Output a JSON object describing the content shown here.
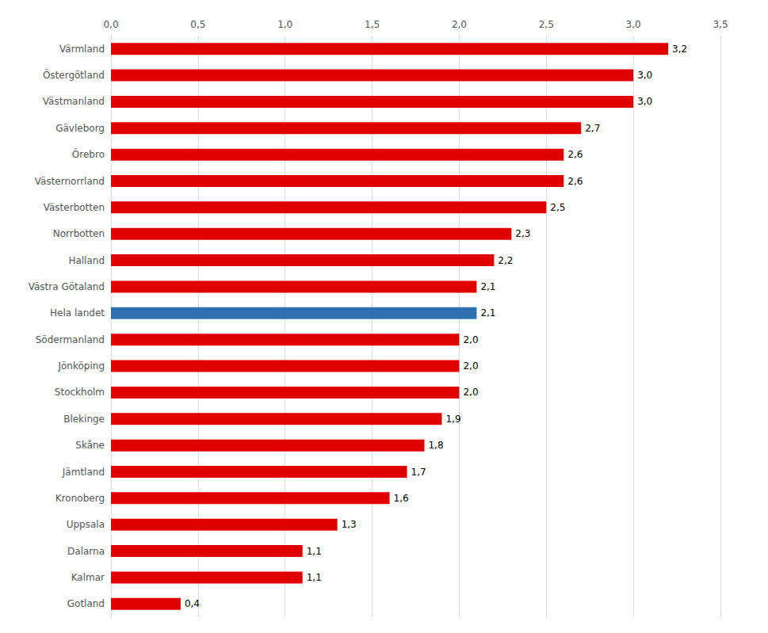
{
  "chart_data": {
    "type": "bar",
    "orientation": "horizontal",
    "categories": [
      "Gotland",
      "Kalmar",
      "Dalarna",
      "Uppsala",
      "Kronoberg",
      "Jämtland",
      "Skåne",
      "Blekinge",
      "Stockholm",
      "Jönköping",
      "Södermanland",
      "Hela landet",
      "Västra Götaland",
      "Halland",
      "Norrbotten",
      "Västerbotten",
      "Västernorrland",
      "Örebro",
      "Gävleborg",
      "Västmanland",
      "Östergötland",
      "Värmland"
    ],
    "values": [
      0.4,
      1.1,
      1.1,
      1.3,
      1.6,
      1.7,
      1.8,
      1.9,
      2.0,
      2.0,
      2.0,
      2.1,
      2.1,
      2.2,
      2.3,
      2.5,
      2.6,
      2.6,
      2.7,
      3.0,
      3.0,
      3.2
    ],
    "value_labels": [
      "0,4",
      "1,1",
      "1,1",
      "1,3",
      "1,6",
      "1,7",
      "1,8",
      "1,9",
      "2,0",
      "2,0",
      "2,0",
      "2,1",
      "2,1",
      "2,2",
      "2,3",
      "2,5",
      "2,6",
      "2,6",
      "2,7",
      "3,0",
      "3,0",
      "3,2"
    ],
    "colors": [
      "#e00000",
      "#e00000",
      "#e00000",
      "#e00000",
      "#e00000",
      "#e00000",
      "#e00000",
      "#e00000",
      "#e00000",
      "#e00000",
      "#e00000",
      "#3070b0",
      "#e00000",
      "#e00000",
      "#e00000",
      "#e00000",
      "#e00000",
      "#e00000",
      "#e00000",
      "#e00000",
      "#e00000",
      "#e00000"
    ],
    "xlim": [
      0,
      3.5
    ],
    "xticks": [
      {
        "value": 0.0,
        "label": "0,0"
      },
      {
        "value": 0.5,
        "label": "0,5"
      },
      {
        "value": 1.0,
        "label": "1,0"
      },
      {
        "value": 1.5,
        "label": "1,5"
      },
      {
        "value": 2.0,
        "label": "2,0"
      },
      {
        "value": 2.5,
        "label": "2,5"
      },
      {
        "value": 3.0,
        "label": "3,0"
      },
      {
        "value": 3.5,
        "label": "3,5"
      }
    ],
    "grid": true,
    "data_labels": true
  }
}
